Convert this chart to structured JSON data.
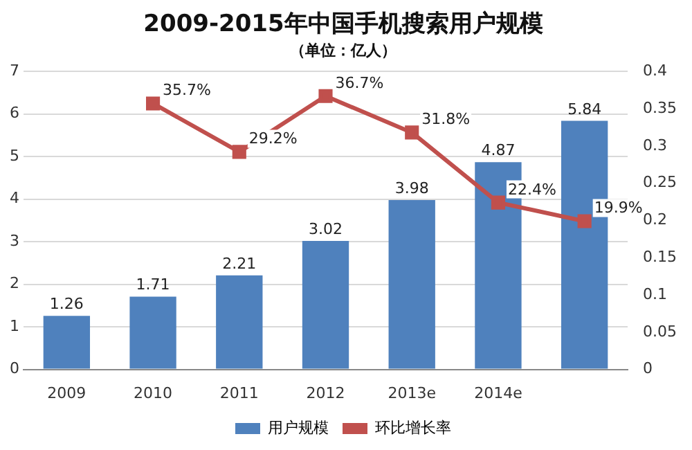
{
  "chart_data": {
    "type": "bar",
    "title": "2009-2015年中国手机搜索用户规模",
    "subtitle": "（单位：亿人）",
    "categories": [
      "2009",
      "2010",
      "2011",
      "2012",
      "2013e",
      "2014e",
      null
    ],
    "series": [
      {
        "name": "用户规模",
        "color": "#4f81bd",
        "values": [
          1.26,
          1.71,
          2.21,
          3.02,
          3.98,
          4.87,
          5.84
        ],
        "value_labels": [
          "1.26",
          "1.71",
          "2.21",
          "3.02",
          "3.98",
          "4.87",
          "5.84"
        ]
      },
      {
        "name": "环比增长率",
        "type": "line",
        "axis": "y2",
        "color": "#c0504d",
        "marker": "square",
        "values": [
          null,
          0.357,
          0.292,
          0.367,
          0.318,
          0.224,
          0.199
        ],
        "value_labels": [
          null,
          "35.7%",
          "29.2%",
          "36.7%",
          "31.8%",
          "22.4%",
          "19.9%"
        ]
      }
    ],
    "ylim": [
      0,
      7
    ],
    "yticks": [
      0,
      1,
      2,
      3,
      4,
      5,
      6,
      7
    ],
    "y2lim": [
      0,
      0.4
    ],
    "y2ticks": [
      0,
      0.05,
      0.1,
      0.15,
      0.2,
      0.25,
      0.3,
      0.35,
      0.4
    ],
    "grid": "y",
    "legend": "bottom"
  }
}
